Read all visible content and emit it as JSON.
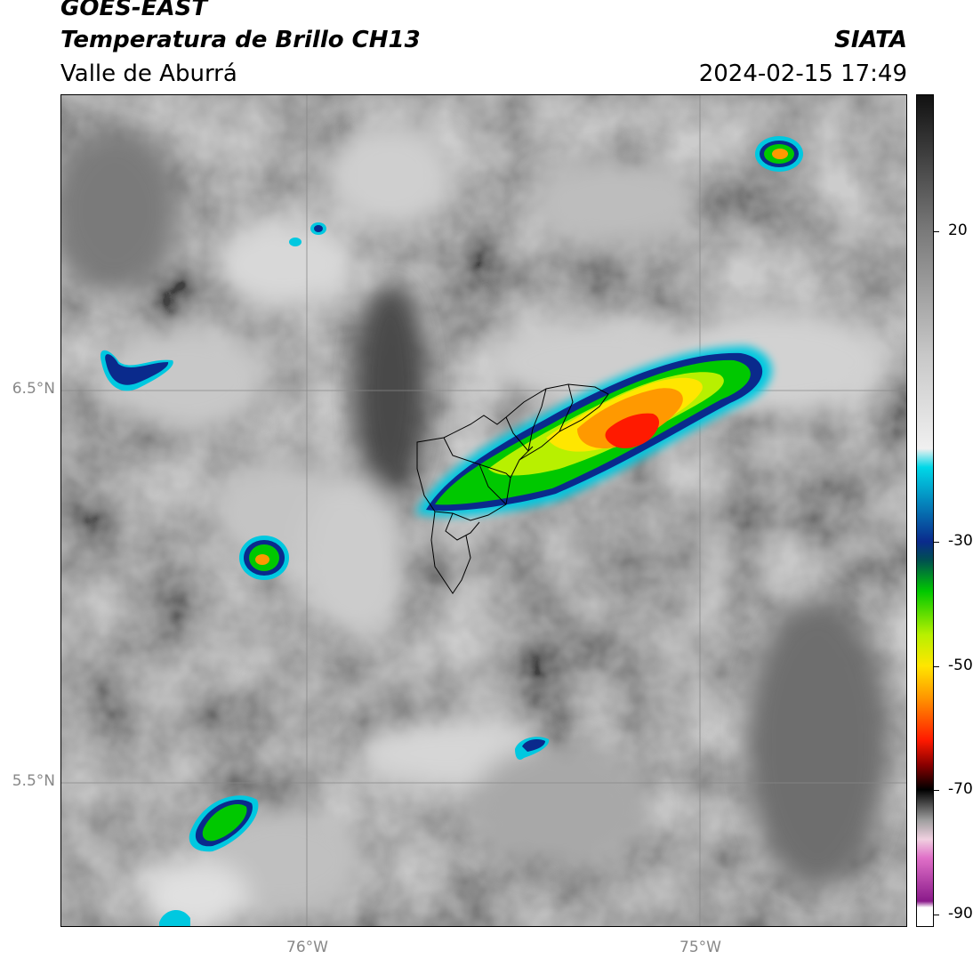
{
  "header": {
    "satellite": "GOES-EAST",
    "product": "Temperatura de Brillo CH13",
    "region": "Valle de Aburrá",
    "organization": "SIATA",
    "datetime": "2024-02-15 17:49"
  },
  "axes": {
    "lat_labels": [
      {
        "text": "6.5°N",
        "value": 6.5
      },
      {
        "text": "5.5°N",
        "value": 5.5
      }
    ],
    "lon_labels": [
      {
        "text": "76°W",
        "value": -76
      },
      {
        "text": "75°W",
        "value": -75
      }
    ],
    "grid": true,
    "grid_color": "#888888"
  },
  "colorbar": {
    "ticks": [
      {
        "text": "20",
        "value": 20
      },
      {
        "text": "-30",
        "value": -30
      },
      {
        "text": "-50",
        "value": -50
      },
      {
        "text": "-70",
        "value": -70
      },
      {
        "text": "-90",
        "value": -90
      }
    ],
    "range": [
      -92,
      42
    ],
    "stops": [
      {
        "value": 42,
        "color": "#111111"
      },
      {
        "value": 20,
        "color": "#7a7a7a"
      },
      {
        "value": 0,
        "color": "#c8c8c8"
      },
      {
        "value": -15,
        "color": "#f0f0f0"
      },
      {
        "value": -18,
        "color": "#00d8e8"
      },
      {
        "value": -30,
        "color": "#0a2a8c"
      },
      {
        "value": -33,
        "color": "#005050"
      },
      {
        "value": -38,
        "color": "#00c800"
      },
      {
        "value": -45,
        "color": "#b8f000"
      },
      {
        "value": -50,
        "color": "#ffe600"
      },
      {
        "value": -55,
        "color": "#ff9900"
      },
      {
        "value": -62,
        "color": "#ff1a00"
      },
      {
        "value": -66,
        "color": "#8a0000"
      },
      {
        "value": -70,
        "color": "#000000"
      },
      {
        "value": -75,
        "color": "#a0a0a0"
      },
      {
        "value": -78,
        "color": "#f0d0e0"
      },
      {
        "value": -81,
        "color": "#e070c8"
      },
      {
        "value": -88,
        "color": "#8a1a8a"
      },
      {
        "value": -89,
        "color": "#ffffff"
      }
    ]
  }
}
